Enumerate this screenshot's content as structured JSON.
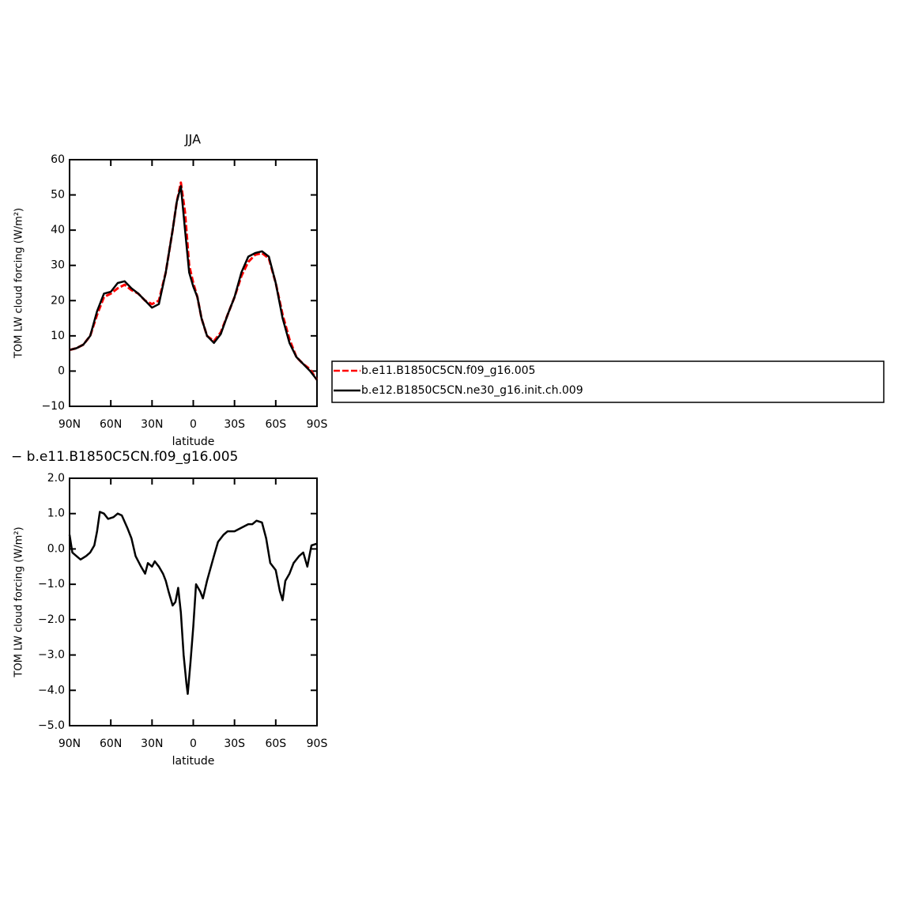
{
  "chart_data": [
    {
      "type": "line",
      "title": "JJA",
      "xlabel": "latitude",
      "ylabel": "TOM LW cloud forcing (W/m²)",
      "x": [
        90,
        85,
        80,
        75,
        70,
        65,
        60,
        55,
        50,
        45,
        40,
        35,
        30,
        25,
        20,
        15,
        12,
        9,
        6,
        3,
        0,
        -3,
        -6,
        -10,
        -15,
        -20,
        -25,
        -30,
        -35,
        -40,
        -45,
        -50,
        -55,
        -60,
        -65,
        -70,
        -75,
        -80,
        -85,
        -90
      ],
      "series": [
        {
          "name": "b.e11.B1850C5CN.f09_g16.005",
          "color": "#ff0000",
          "dash": true,
          "values": [
            6,
            6.5,
            7.5,
            10,
            16,
            21,
            22,
            23.5,
            24.5,
            23,
            22,
            20,
            19,
            20,
            28,
            40,
            48,
            53.5,
            45,
            30,
            25,
            21,
            15,
            10,
            8.5,
            11,
            16,
            21,
            27,
            31,
            33,
            33.5,
            32,
            25,
            16,
            9,
            4,
            2,
            0.5,
            -2.5
          ]
        },
        {
          "name": "b.e12.B1850C5CN.ne30_g16.init.ch.009",
          "color": "#000000",
          "dash": false,
          "values": [
            6,
            6.5,
            7.5,
            10,
            17,
            22,
            22.5,
            25,
            25.5,
            23.5,
            22,
            20,
            18,
            19,
            28,
            40,
            48,
            52.5,
            40,
            28,
            24,
            21,
            15,
            10,
            8,
            10.5,
            16,
            21,
            28,
            32.5,
            33.5,
            34,
            32.5,
            25,
            15,
            8,
            4,
            2,
            0,
            -2.5
          ]
        }
      ],
      "xlim": [
        90,
        -90
      ],
      "xticks": [
        {
          "value": 90,
          "label": "90N"
        },
        {
          "value": 60,
          "label": "60N"
        },
        {
          "value": 30,
          "label": "30N"
        },
        0,
        {
          "value": -30,
          "label": "30S"
        },
        {
          "value": -60,
          "label": "60S"
        },
        {
          "value": -90,
          "label": "90S"
        }
      ],
      "ylim": [
        -10,
        60
      ],
      "yticks": [
        {
          "value": -10,
          "label": "−10"
        },
        0,
        10,
        20,
        30,
        40,
        50,
        60
      ]
    },
    {
      "type": "line",
      "title": "− b.e11.B1850C5CN.f09_g16.005",
      "xlabel": "latitude",
      "ylabel": "TOM LW cloud forcing (W/m²)",
      "x": [
        90,
        88,
        85,
        82,
        78,
        75,
        72,
        70,
        68,
        65,
        62,
        58,
        55,
        52,
        48,
        45,
        42,
        38,
        35,
        33,
        30,
        28,
        25,
        22,
        20,
        18,
        15,
        13,
        11,
        9,
        7,
        5,
        4,
        2,
        0,
        -2,
        -5,
        -7,
        -10,
        -15,
        -18,
        -22,
        -25,
        -30,
        -35,
        -40,
        -43,
        -46,
        -50,
        -53,
        -56,
        -60,
        -63,
        -65,
        -67,
        -70,
        -73,
        -77,
        -80,
        -83,
        -86,
        -90
      ],
      "color": "#000000",
      "values": [
        0.4,
        -0.1,
        -0.2,
        -0.3,
        -0.2,
        -0.1,
        0.1,
        0.5,
        1.05,
        1.0,
        0.85,
        0.9,
        1.0,
        0.95,
        0.6,
        0.3,
        -0.2,
        -0.5,
        -0.7,
        -0.4,
        -0.5,
        -0.35,
        -0.5,
        -0.7,
        -0.9,
        -1.2,
        -1.6,
        -1.5,
        -1.1,
        -1.8,
        -3.0,
        -3.8,
        -4.1,
        -3.2,
        -2.2,
        -1.0,
        -1.2,
        -1.4,
        -0.9,
        -0.2,
        0.2,
        0.4,
        0.5,
        0.5,
        0.6,
        0.7,
        0.7,
        0.8,
        0.75,
        0.3,
        -0.4,
        -0.6,
        -1.2,
        -1.45,
        -0.9,
        -0.7,
        -0.4,
        -0.2,
        -0.1,
        -0.5,
        0.1,
        0.15
      ],
      "xlim": [
        90,
        -90
      ],
      "xticks": [
        {
          "value": 90,
          "label": "90N"
        },
        {
          "value": 60,
          "label": "60N"
        },
        {
          "value": 30,
          "label": "30N"
        },
        0,
        {
          "value": -30,
          "label": "30S"
        },
        {
          "value": -60,
          "label": "60S"
        },
        {
          "value": -90,
          "label": "90S"
        }
      ],
      "ylim": [
        -5,
        2
      ],
      "yticks": [
        {
          "value": -5,
          "label": "−5.0"
        },
        {
          "value": -4,
          "label": "−4.0"
        },
        {
          "value": -3,
          "label": "−3.0"
        },
        {
          "value": -2,
          "label": "−2.0"
        },
        {
          "value": -1,
          "label": "−1.0"
        },
        {
          "value": 0,
          "label": "0.0"
        },
        {
          "value": 1,
          "label": "1.0"
        },
        {
          "value": 2,
          "label": "2.0"
        }
      ]
    }
  ]
}
